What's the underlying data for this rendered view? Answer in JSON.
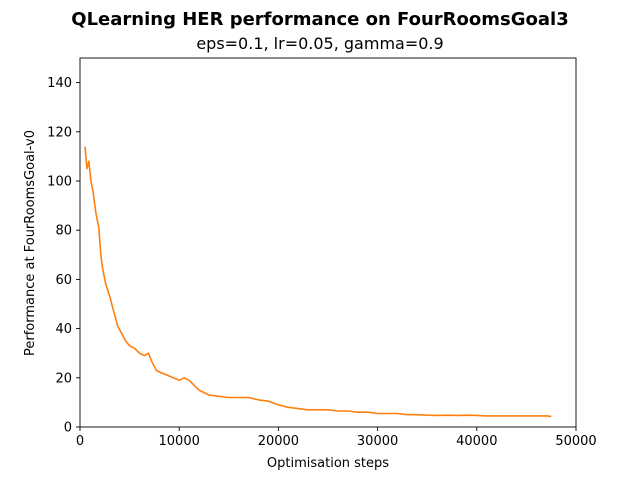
{
  "chart_data": {
    "type": "line",
    "title": "QLearning HER performance on FourRoomsGoal3",
    "subtitle": "eps=0.1, lr=0.05, gamma=0.9",
    "xlabel": "Optimisation steps",
    "ylabel": "Performance at FourRoomsGoal-v0",
    "xlim": [
      0,
      50000
    ],
    "ylim": [
      0,
      150
    ],
    "x_ticks": [
      "0",
      "10000",
      "20000",
      "30000",
      "40000",
      "50000"
    ],
    "y_ticks": [
      "0",
      "20",
      "40",
      "60",
      "80",
      "100",
      "120",
      "140"
    ],
    "grid": false,
    "legend": "none",
    "series": [
      {
        "color": "#ff7f0e",
        "x": [
          500,
          700,
          900,
          1100,
          1300,
          1600,
          1900,
          2100,
          2300,
          2600,
          3000,
          3400,
          3800,
          4200,
          4600,
          5000,
          5500,
          6000,
          6500,
          6900,
          7300,
          7700,
          8200,
          8800,
          9400,
          10000,
          10500,
          11000,
          11500,
          12000,
          13000,
          14000,
          15000,
          16000,
          17000,
          18000,
          19000,
          20000,
          21000,
          22000,
          23000,
          24000,
          25000,
          26000,
          27000,
          28000,
          29000,
          30000,
          31000,
          32000,
          33000,
          34000,
          35000,
          36000,
          37000,
          38000,
          39000,
          40000,
          41000,
          42000,
          43000,
          44000,
          45000,
          46000,
          47000,
          47500
        ],
        "y": [
          114,
          105,
          108,
          100,
          96,
          87,
          81,
          70,
          64,
          58,
          53,
          47,
          41,
          38,
          35,
          33,
          32,
          30,
          29,
          30,
          26,
          23,
          22,
          21,
          20,
          19,
          20,
          19,
          17,
          15,
          13,
          12.5,
          12,
          12,
          12,
          11,
          10.5,
          9,
          8,
          7.5,
          7,
          7,
          7,
          6.5,
          6.5,
          6,
          6,
          5.5,
          5.5,
          5.5,
          5,
          5,
          4.8,
          4.7,
          4.8,
          4.7,
          4.8,
          4.7,
          4.5,
          4.5,
          4.5,
          4.5,
          4.5,
          4.5,
          4.5,
          4.3
        ]
      }
    ]
  }
}
